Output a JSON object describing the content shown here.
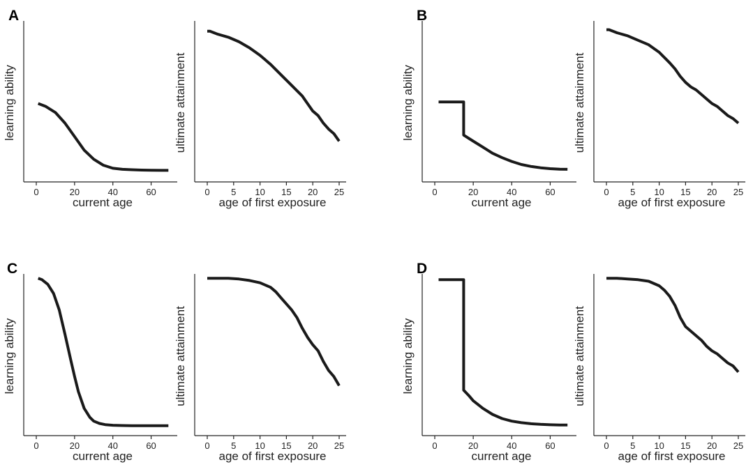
{
  "chart_data": [
    {
      "panel": "A",
      "type": "line",
      "xlabel": "current age",
      "ylabel": "learning ability",
      "xlim": [
        0,
        70
      ],
      "ylim": [
        0,
        1
      ],
      "xticks": [
        0,
        20,
        40,
        60
      ],
      "series": [
        {
          "x": [
            1,
            5,
            10,
            15,
            20,
            25,
            30,
            35,
            40,
            45,
            50,
            55,
            60,
            65,
            69
          ],
          "y": [
            0.47,
            0.45,
            0.41,
            0.34,
            0.25,
            0.16,
            0.1,
            0.06,
            0.04,
            0.033,
            0.03,
            0.028,
            0.027,
            0.026,
            0.026
          ]
        }
      ]
    },
    {
      "panel": "A",
      "type": "line",
      "xlabel": "age of first exposure",
      "ylabel": "ultimate attainment",
      "xlim": [
        0,
        25
      ],
      "ylim": [
        0,
        1
      ],
      "xticks": [
        0,
        5,
        10,
        15,
        20,
        25
      ],
      "series": [
        {
          "x": [
            0,
            0.5,
            2,
            4,
            6,
            8,
            10,
            12,
            14,
            16,
            18,
            19,
            20,
            21,
            22,
            23,
            24,
            25
          ],
          "y": [
            0.95,
            0.95,
            0.93,
            0.91,
            0.88,
            0.84,
            0.79,
            0.73,
            0.66,
            0.59,
            0.52,
            0.47,
            0.42,
            0.39,
            0.34,
            0.3,
            0.27,
            0.22
          ]
        }
      ]
    },
    {
      "panel": "B",
      "type": "line",
      "xlabel": "current age",
      "ylabel": "learning ability",
      "xlim": [
        0,
        70
      ],
      "ylim": [
        0,
        1
      ],
      "xticks": [
        0,
        20,
        40,
        60
      ],
      "series": [
        {
          "x": [
            2,
            15,
            15,
            20,
            25,
            30,
            35,
            40,
            45,
            50,
            55,
            60,
            65,
            69
          ],
          "y": [
            0.48,
            0.48,
            0.26,
            0.22,
            0.18,
            0.14,
            0.11,
            0.085,
            0.065,
            0.052,
            0.043,
            0.037,
            0.034,
            0.033
          ]
        }
      ]
    },
    {
      "panel": "B",
      "type": "line",
      "xlabel": "age of first exposure",
      "ylabel": "ultimate attainment",
      "xlim": [
        0,
        25
      ],
      "ylim": [
        0,
        1
      ],
      "xticks": [
        0,
        5,
        10,
        15,
        20,
        25
      ],
      "series": [
        {
          "x": [
            0,
            0.5,
            2,
            4,
            6,
            8,
            10,
            12,
            13,
            14,
            15,
            16,
            17,
            18,
            19,
            20,
            21,
            22,
            23,
            24,
            25
          ],
          "y": [
            0.96,
            0.96,
            0.94,
            0.92,
            0.89,
            0.86,
            0.81,
            0.74,
            0.7,
            0.65,
            0.61,
            0.58,
            0.56,
            0.53,
            0.5,
            0.47,
            0.45,
            0.42,
            0.39,
            0.37,
            0.34
          ]
        }
      ]
    },
    {
      "panel": "C",
      "type": "line",
      "xlabel": "current age",
      "ylabel": "learning ability",
      "xlim": [
        0,
        70
      ],
      "ylim": [
        0,
        1
      ],
      "xticks": [
        0,
        20,
        40,
        60
      ],
      "series": [
        {
          "x": [
            1,
            3,
            6,
            9,
            12,
            15,
            18,
            20,
            22,
            25,
            28,
            30,
            33,
            36,
            40,
            45,
            50,
            60,
            69
          ],
          "y": [
            0.99,
            0.98,
            0.95,
            0.89,
            0.78,
            0.62,
            0.45,
            0.34,
            0.24,
            0.13,
            0.07,
            0.045,
            0.03,
            0.022,
            0.018,
            0.016,
            0.015,
            0.015,
            0.015
          ]
        }
      ]
    },
    {
      "panel": "C",
      "type": "line",
      "xlabel": "age of first exposure",
      "ylabel": "ultimate attainment",
      "xlim": [
        0,
        25
      ],
      "ylim": [
        0,
        1
      ],
      "xticks": [
        0,
        5,
        10,
        15,
        20,
        25
      ],
      "series": [
        {
          "x": [
            0,
            2,
            4,
            6,
            8,
            10,
            12,
            13,
            14,
            15,
            16,
            17,
            18,
            19,
            20,
            21,
            22,
            23,
            24,
            25
          ],
          "y": [
            0.99,
            0.99,
            0.99,
            0.985,
            0.975,
            0.96,
            0.93,
            0.9,
            0.86,
            0.82,
            0.78,
            0.73,
            0.66,
            0.6,
            0.55,
            0.51,
            0.44,
            0.38,
            0.34,
            0.28
          ]
        }
      ]
    },
    {
      "panel": "D",
      "type": "line",
      "xlabel": "current age",
      "ylabel": "learning ability",
      "xlim": [
        0,
        70
      ],
      "ylim": [
        0,
        1
      ],
      "xticks": [
        0,
        20,
        40,
        60
      ],
      "series": [
        {
          "x": [
            2,
            15,
            15,
            18,
            20,
            25,
            30,
            35,
            40,
            45,
            50,
            55,
            60,
            65,
            69
          ],
          "y": [
            0.98,
            0.98,
            0.25,
            0.21,
            0.18,
            0.13,
            0.09,
            0.062,
            0.045,
            0.035,
            0.028,
            0.024,
            0.021,
            0.02,
            0.02
          ]
        }
      ]
    },
    {
      "panel": "D",
      "type": "line",
      "xlabel": "age of first exposure",
      "ylabel": "ultimate attainment",
      "xlim": [
        0,
        25
      ],
      "ylim": [
        0,
        1
      ],
      "xticks": [
        0,
        5,
        10,
        15,
        20,
        25
      ],
      "series": [
        {
          "x": [
            0,
            2,
            4,
            6,
            8,
            10,
            11,
            12,
            13,
            14,
            15,
            16,
            17,
            18,
            19,
            20,
            21,
            22,
            23,
            24,
            25
          ],
          "y": [
            0.99,
            0.99,
            0.985,
            0.98,
            0.97,
            0.94,
            0.91,
            0.87,
            0.81,
            0.73,
            0.67,
            0.64,
            0.61,
            0.58,
            0.54,
            0.51,
            0.49,
            0.46,
            0.43,
            0.41,
            0.37
          ]
        }
      ]
    }
  ]
}
